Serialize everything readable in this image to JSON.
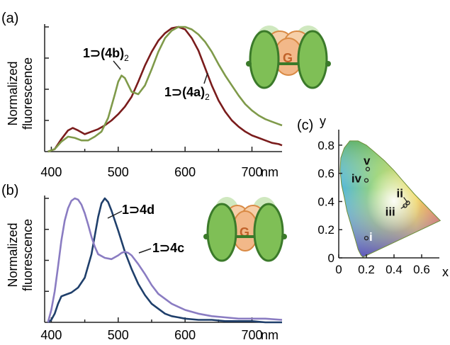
{
  "chart_data": [
    {
      "panel_label": "(a)",
      "type": "line",
      "ylabel_lines": [
        "Normalized",
        "fluorescence"
      ],
      "x_unit": "nm",
      "xlim": [
        390,
        745
      ],
      "ylim": [
        0,
        1.0
      ],
      "x_ticks": [
        400,
        500,
        600,
        700
      ],
      "series": [
        {
          "name": "1⊃(4a)2",
          "label_parts": [
            "1⊃(",
            "4a",
            ")",
            "2"
          ],
          "color": "#7a1c1c",
          "x": [
            395,
            405,
            415,
            425,
            432,
            440,
            450,
            460,
            470,
            480,
            490,
            500,
            510,
            520,
            530,
            540,
            550,
            560,
            570,
            580,
            590,
            600,
            610,
            620,
            630,
            640,
            650,
            660,
            670,
            680,
            690,
            700,
            710,
            720,
            730,
            740,
            745
          ],
          "y": [
            0.0,
            0.02,
            0.1,
            0.17,
            0.19,
            0.17,
            0.14,
            0.16,
            0.18,
            0.21,
            0.25,
            0.3,
            0.36,
            0.44,
            0.56,
            0.69,
            0.8,
            0.89,
            0.95,
            0.99,
            1.0,
            0.98,
            0.91,
            0.81,
            0.67,
            0.53,
            0.41,
            0.32,
            0.25,
            0.2,
            0.16,
            0.13,
            0.11,
            0.09,
            0.07,
            0.06,
            0.05
          ]
        },
        {
          "name": "1⊃(4b)2",
          "label_parts": [
            "1⊃(",
            "4b",
            ")",
            "2"
          ],
          "color": "#7f9a4a",
          "x": [
            395,
            405,
            415,
            425,
            435,
            445,
            455,
            465,
            475,
            485,
            495,
            500,
            505,
            510,
            520,
            530,
            540,
            550,
            560,
            570,
            580,
            590,
            600,
            610,
            620,
            630,
            640,
            650,
            660,
            670,
            680,
            690,
            700,
            710,
            720,
            730,
            740,
            745
          ],
          "y": [
            0.0,
            0.02,
            0.08,
            0.12,
            0.11,
            0.09,
            0.09,
            0.12,
            0.16,
            0.27,
            0.46,
            0.56,
            0.61,
            0.59,
            0.48,
            0.46,
            0.53,
            0.66,
            0.8,
            0.91,
            0.97,
            1.0,
            1.0,
            0.98,
            0.94,
            0.88,
            0.8,
            0.7,
            0.61,
            0.53,
            0.45,
            0.38,
            0.33,
            0.29,
            0.26,
            0.24,
            0.22,
            0.21
          ]
        }
      ]
    },
    {
      "panel_label": "(b)",
      "type": "line",
      "ylabel_lines": [
        "Normalized",
        "fluorescence"
      ],
      "x_unit": "nm",
      "xlim": [
        390,
        745
      ],
      "ylim": [
        0,
        1.0
      ],
      "x_ticks": [
        400,
        500,
        600,
        700
      ],
      "series": [
        {
          "name": "1⊃4d",
          "label_parts": [
            "1⊃",
            "4d"
          ],
          "color": "#1f3f6b",
          "x": [
            395,
            400,
            405,
            410,
            415,
            420,
            430,
            440,
            450,
            460,
            465,
            470,
            475,
            480,
            485,
            490,
            500,
            510,
            520,
            530,
            540,
            550,
            560,
            570,
            580,
            590,
            600,
            620,
            640,
            660,
            680,
            700,
            720,
            745
          ],
          "y": [
            0.0,
            0.02,
            0.07,
            0.15,
            0.21,
            0.22,
            0.24,
            0.28,
            0.36,
            0.55,
            0.7,
            0.85,
            0.96,
            1.0,
            0.97,
            0.9,
            0.74,
            0.57,
            0.43,
            0.31,
            0.22,
            0.15,
            0.11,
            0.07,
            0.05,
            0.04,
            0.03,
            0.02,
            0.02,
            0.01,
            0.01,
            0.01,
            0.0,
            0.0
          ]
        },
        {
          "name": "1⊃4c",
          "label_parts": [
            "1⊃",
            "4c"
          ],
          "color": "#8a7cc2",
          "x": [
            395,
            400,
            405,
            410,
            415,
            420,
            425,
            430,
            435,
            440,
            445,
            450,
            455,
            460,
            465,
            470,
            480,
            490,
            500,
            505,
            510,
            515,
            520,
            530,
            540,
            550,
            560,
            580,
            600,
            620,
            640,
            660,
            680,
            700,
            720,
            745
          ],
          "y": [
            0.0,
            0.1,
            0.25,
            0.45,
            0.66,
            0.82,
            0.92,
            0.98,
            1.0,
            0.99,
            0.95,
            0.88,
            0.79,
            0.69,
            0.61,
            0.55,
            0.52,
            0.51,
            0.54,
            0.56,
            0.57,
            0.56,
            0.54,
            0.47,
            0.39,
            0.3,
            0.23,
            0.15,
            0.1,
            0.07,
            0.05,
            0.04,
            0.03,
            0.03,
            0.03,
            0.02
          ]
        }
      ]
    },
    {
      "panel_label": "(c)",
      "type": "scatter",
      "xlabel": "x",
      "ylabel": "y",
      "xlim": [
        0,
        0.8
      ],
      "ylim": [
        0,
        0.9
      ],
      "x_ticks": [
        0,
        0.2,
        0.4,
        0.6
      ],
      "y_ticks": [
        0,
        0.2,
        0.4,
        0.6,
        0.8
      ],
      "points": [
        {
          "label": "i",
          "x": 0.2,
          "y": 0.14
        },
        {
          "label": "ii",
          "x": 0.5,
          "y": 0.39
        },
        {
          "label": "iii",
          "x": 0.48,
          "y": 0.37
        },
        {
          "label": "iv",
          "x": 0.2,
          "y": 0.55
        },
        {
          "label": "v",
          "x": 0.21,
          "y": 0.63
        }
      ]
    }
  ],
  "molecule_label": "G",
  "colors": {
    "capsule_green": "#7fbf56",
    "capsule_outline": "#3b7a2a",
    "guest_orange": "#f2b889",
    "guest_outline": "#d98a45",
    "guest_text": "#c0622a"
  }
}
